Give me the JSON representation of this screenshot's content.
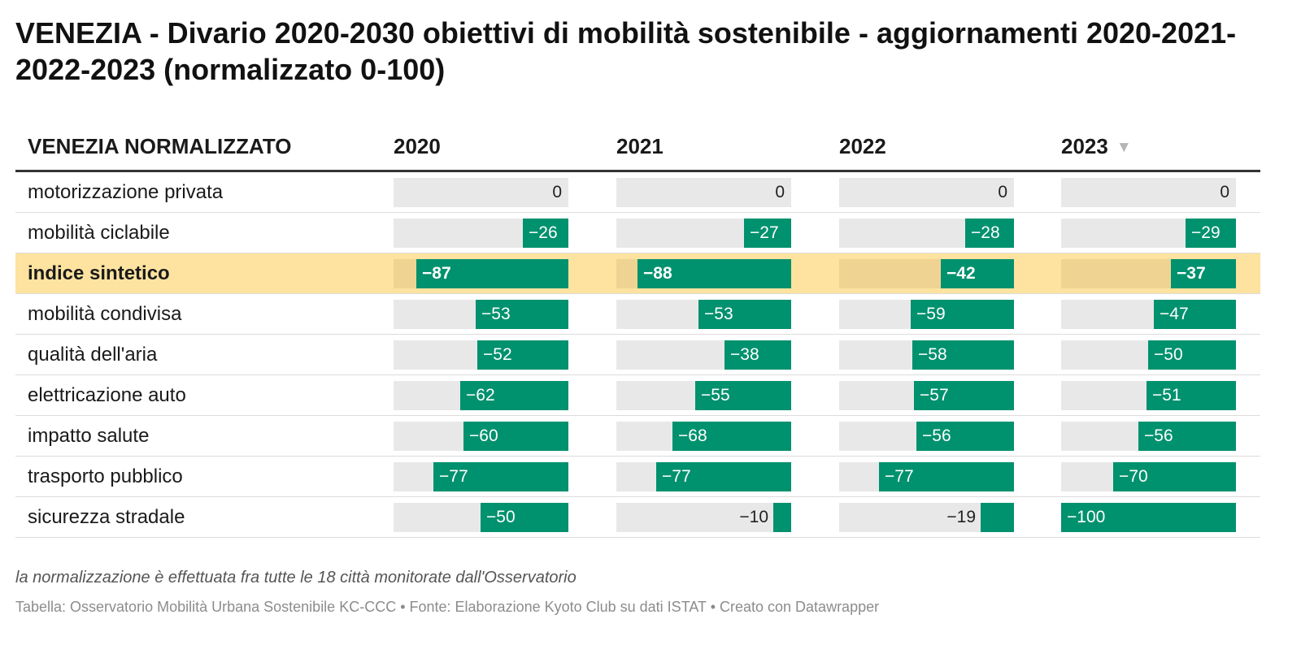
{
  "title": "VENEZIA - Divario 2020-2030 obiettivi di mobilità sostenibile - aggiornamenti 2020-2021-2022-2023 (normalizzato 0-100)",
  "chart_data": {
    "type": "table",
    "columns": [
      "VENEZIA NORMALIZZATO",
      "2020",
      "2021",
      "2022",
      "2023"
    ],
    "sorted_column": "2023",
    "sort_direction": "descending",
    "bar_range": [
      -100,
      0
    ],
    "colors": {
      "bar": "#00916e",
      "track": "#e8e8e8",
      "highlight_row": "#fde39f",
      "highlight_track": "#eed393"
    },
    "highlighted_row": "indice sintetico",
    "rows": [
      {
        "label": "motorizzazione privata",
        "values": [
          0,
          0,
          0,
          0
        ],
        "labels": [
          "0",
          "0",
          "0",
          "0"
        ]
      },
      {
        "label": "mobilità ciclabile",
        "values": [
          -26,
          -27,
          -28,
          -29
        ],
        "labels": [
          "−26",
          "−27",
          "−28",
          "−29"
        ]
      },
      {
        "label": "indice sintetico",
        "values": [
          -87,
          -88,
          -42,
          -37
        ],
        "labels": [
          "−87",
          "−88",
          "−42",
          "−37"
        ]
      },
      {
        "label": "mobilità condivisa",
        "values": [
          -53,
          -53,
          -59,
          -47
        ],
        "labels": [
          "−53",
          "−53",
          "−59",
          "−47"
        ]
      },
      {
        "label": "qualità dell'aria",
        "values": [
          -52,
          -38,
          -58,
          -50
        ],
        "labels": [
          "−52",
          "−38",
          "−58",
          "−50"
        ]
      },
      {
        "label": "elettricazione auto",
        "values": [
          -62,
          -55,
          -57,
          -51
        ],
        "labels": [
          "−62",
          "−55",
          "−57",
          "−51"
        ]
      },
      {
        "label": "impatto salute",
        "values": [
          -60,
          -68,
          -56,
          -56
        ],
        "labels": [
          "−60",
          "−68",
          "−56",
          "−56"
        ]
      },
      {
        "label": "trasporto pubblico",
        "values": [
          -77,
          -77,
          -77,
          -70
        ],
        "labels": [
          "−77",
          "−77",
          "−77",
          "−70"
        ]
      },
      {
        "label": "sicurezza stradale",
        "values": [
          -50,
          -10,
          -19,
          -100
        ],
        "labels": [
          "−50",
          "−10",
          "−19",
          "−100"
        ]
      }
    ]
  },
  "note": "la normalizzazione è effettuata fra tutte le 18 città monitorate dall'Osservatorio",
  "source": "Tabella: Osservatorio Mobilità Urbana Sostenibile KC-CCC • Fonte: Elaborazione Kyoto Club su dati ISTAT • Creato con Datawrapper"
}
